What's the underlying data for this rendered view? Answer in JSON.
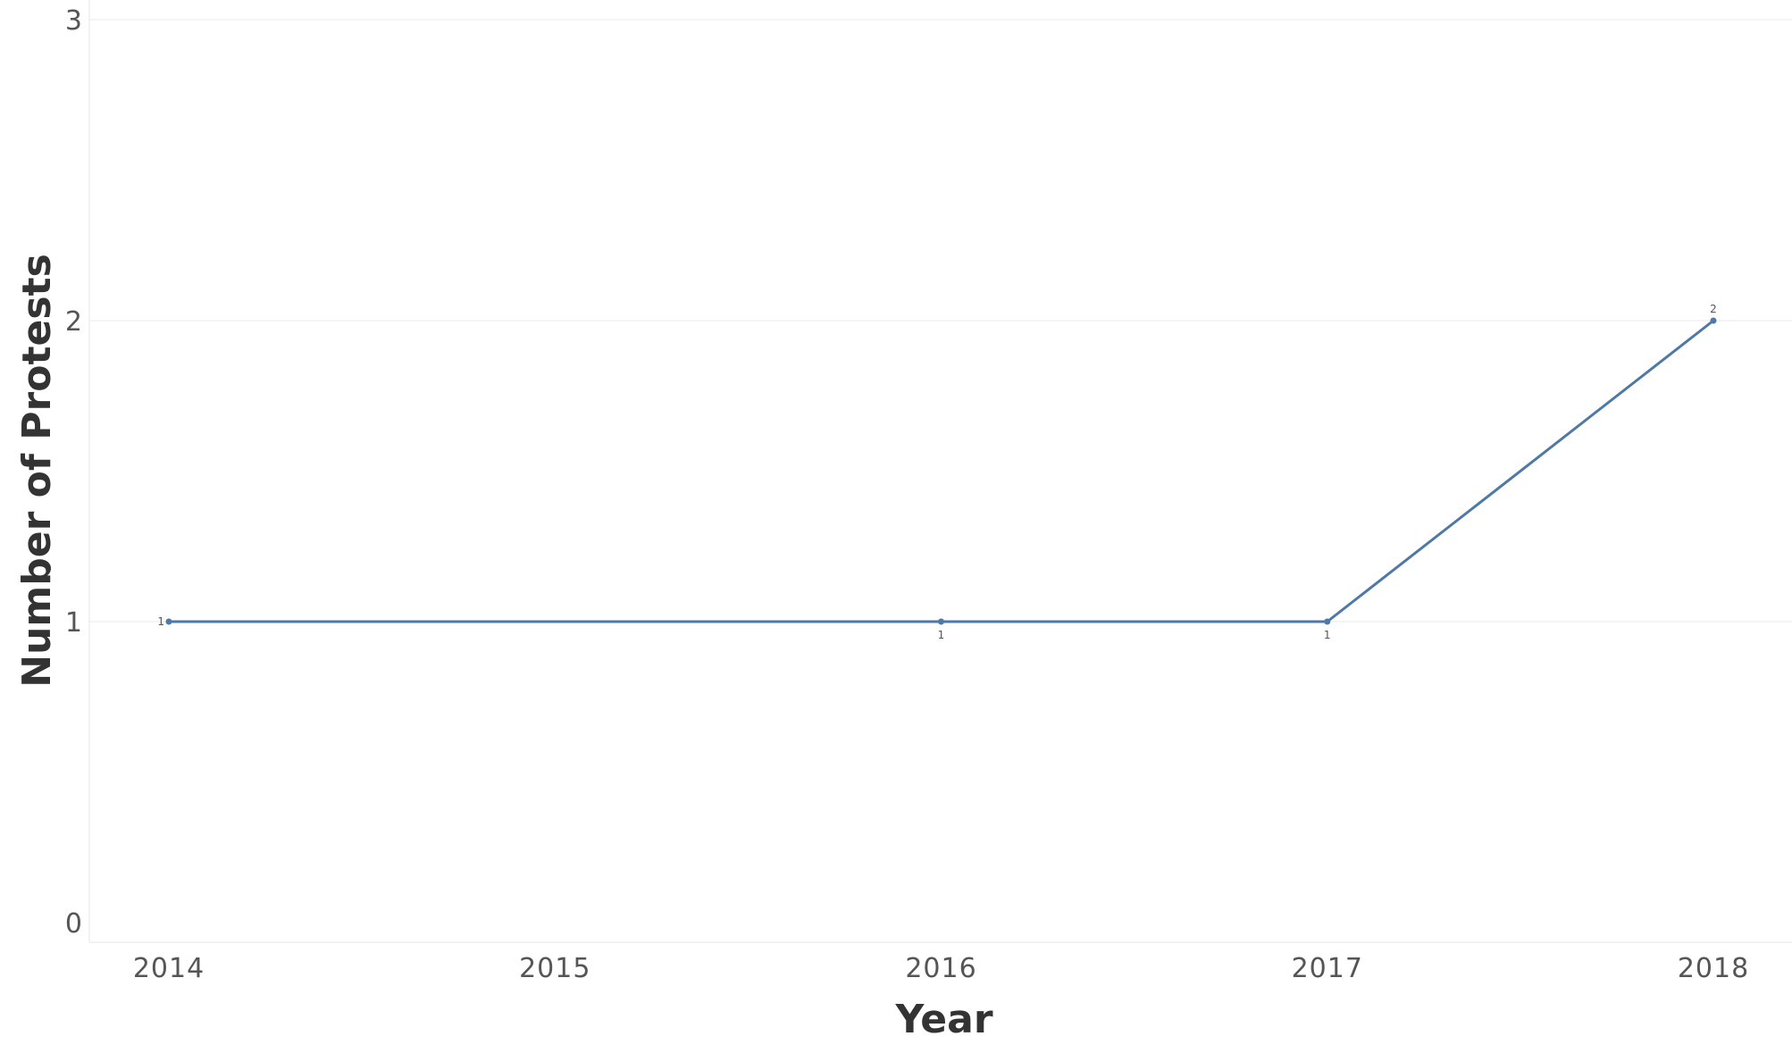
{
  "chart_data": {
    "type": "line",
    "title": "",
    "xlabel": "Year",
    "ylabel": "Number of Protests",
    "categories": [
      "2014",
      "2015",
      "2016",
      "2017",
      "2018"
    ],
    "series": [
      {
        "name": "Number of Protests",
        "color": "#4e79a7",
        "points": [
          {
            "x": "2014",
            "y": 1
          },
          {
            "x": "2016",
            "y": 1
          },
          {
            "x": "2017",
            "y": 1
          },
          {
            "x": "2018",
            "y": 2
          }
        ]
      }
    ],
    "data_labels": [
      "1",
      "1",
      "1",
      "2"
    ],
    "yticks": [
      "0",
      "1",
      "2",
      "3"
    ],
    "ylim": [
      0,
      3
    ],
    "grid": true,
    "legend": "none"
  }
}
